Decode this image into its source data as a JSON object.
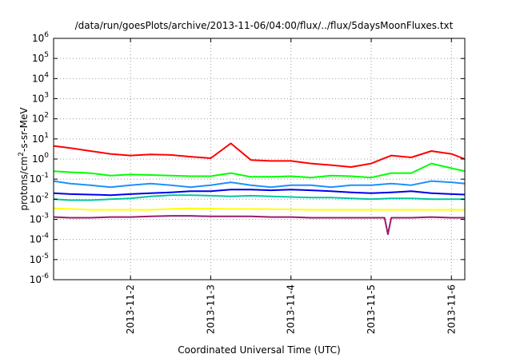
{
  "chart_data": {
    "type": "line",
    "title": "/data/run/goesPlots/archive/2013-11-06/04:00/flux/../flux/5daysMoonFluxes.txt",
    "xlabel": "Coordinated Universal Time (UTC)",
    "ylabel_parts": [
      "protons/cm",
      "2",
      "-s-sr-MeV"
    ],
    "yscale": "log",
    "ylim": [
      1e-06,
      1000000.0
    ],
    "xlim": [
      "2013-11-01T01:00",
      "2013-11-06T04:00"
    ],
    "grid": true,
    "ytick_labels": [
      {
        "base": "10",
        "exp": "6"
      },
      {
        "base": "10",
        "exp": "5"
      },
      {
        "base": "10",
        "exp": "4"
      },
      {
        "base": "10",
        "exp": "3"
      },
      {
        "base": "10",
        "exp": "2"
      },
      {
        "base": "10",
        "exp": "1"
      },
      {
        "base": "10",
        "exp": "0"
      },
      {
        "base": "10",
        "exp": "-1"
      },
      {
        "base": "10",
        "exp": "-2"
      },
      {
        "base": "10",
        "exp": "-3"
      },
      {
        "base": "10",
        "exp": "-4"
      },
      {
        "base": "10",
        "exp": "-5"
      },
      {
        "base": "10",
        "exp": "-6"
      }
    ],
    "xtick_labels": [
      "2013-11-2",
      "2013-11-3",
      "2013-11-4",
      "2013-11-5",
      "2013-11-6"
    ],
    "series": [
      {
        "color": "#ff0000",
        "x": [
          "2013-11-01T01:00",
          "2013-11-01T06:00",
          "2013-11-01T12:00",
          "2013-11-01T18:00",
          "2013-11-02T00:00",
          "2013-11-02T06:00",
          "2013-11-02T12:00",
          "2013-11-02T18:00",
          "2013-11-03T00:00",
          "2013-11-03T06:00",
          "2013-11-03T12:00",
          "2013-11-03T18:00",
          "2013-11-04T00:00",
          "2013-11-04T06:00",
          "2013-11-04T12:00",
          "2013-11-04T18:00",
          "2013-11-05T00:00",
          "2013-11-05T06:00",
          "2013-11-05T12:00",
          "2013-11-05T18:00",
          "2013-11-06T00:00",
          "2013-11-06T04:00"
        ],
        "values": [
          4.5,
          3.5,
          2.5,
          1.8,
          1.5,
          1.7,
          1.6,
          1.3,
          1.1,
          6.0,
          0.9,
          0.8,
          0.8,
          0.6,
          0.5,
          0.4,
          0.6,
          1.5,
          1.2,
          2.5,
          1.8,
          1.0
        ]
      },
      {
        "color": "#00ff00",
        "x": [
          "2013-11-01T01:00",
          "2013-11-01T06:00",
          "2013-11-01T12:00",
          "2013-11-01T18:00",
          "2013-11-02T00:00",
          "2013-11-02T06:00",
          "2013-11-02T12:00",
          "2013-11-02T18:00",
          "2013-11-03T00:00",
          "2013-11-03T06:00",
          "2013-11-03T12:00",
          "2013-11-03T18:00",
          "2013-11-04T00:00",
          "2013-11-04T06:00",
          "2013-11-04T12:00",
          "2013-11-04T18:00",
          "2013-11-05T00:00",
          "2013-11-05T06:00",
          "2013-11-05T12:00",
          "2013-11-05T18:00",
          "2013-11-06T00:00",
          "2013-11-06T04:00"
        ],
        "values": [
          0.25,
          0.22,
          0.2,
          0.15,
          0.17,
          0.16,
          0.15,
          0.14,
          0.14,
          0.2,
          0.13,
          0.13,
          0.14,
          0.12,
          0.15,
          0.14,
          0.12,
          0.2,
          0.2,
          0.6,
          0.35,
          0.25
        ]
      },
      {
        "color": "#1e90ff",
        "x": [
          "2013-11-01T01:00",
          "2013-11-01T06:00",
          "2013-11-01T12:00",
          "2013-11-01T18:00",
          "2013-11-02T00:00",
          "2013-11-02T06:00",
          "2013-11-02T12:00",
          "2013-11-02T18:00",
          "2013-11-03T00:00",
          "2013-11-03T06:00",
          "2013-11-03T12:00",
          "2013-11-03T18:00",
          "2013-11-04T00:00",
          "2013-11-04T06:00",
          "2013-11-04T12:00",
          "2013-11-04T18:00",
          "2013-11-05T00:00",
          "2013-11-05T06:00",
          "2013-11-05T12:00",
          "2013-11-05T18:00",
          "2013-11-06T00:00",
          "2013-11-06T04:00"
        ],
        "values": [
          0.08,
          0.06,
          0.05,
          0.04,
          0.05,
          0.06,
          0.05,
          0.04,
          0.05,
          0.07,
          0.05,
          0.04,
          0.05,
          0.05,
          0.04,
          0.05,
          0.05,
          0.06,
          0.05,
          0.08,
          0.07,
          0.06
        ]
      },
      {
        "color": "#0000ee",
        "x": [
          "2013-11-01T01:00",
          "2013-11-01T06:00",
          "2013-11-01T12:00",
          "2013-11-01T18:00",
          "2013-11-02T00:00",
          "2013-11-02T06:00",
          "2013-11-02T12:00",
          "2013-11-02T18:00",
          "2013-11-03T00:00",
          "2013-11-03T06:00",
          "2013-11-03T12:00",
          "2013-11-03T18:00",
          "2013-11-04T00:00",
          "2013-11-04T06:00",
          "2013-11-04T12:00",
          "2013-11-04T18:00",
          "2013-11-05T00:00",
          "2013-11-05T06:00",
          "2013-11-05T12:00",
          "2013-11-05T18:00",
          "2013-11-06T00:00",
          "2013-11-06T04:00"
        ],
        "values": [
          0.02,
          0.018,
          0.017,
          0.016,
          0.018,
          0.02,
          0.022,
          0.025,
          0.025,
          0.03,
          0.03,
          0.028,
          0.03,
          0.028,
          0.025,
          0.022,
          0.02,
          0.022,
          0.025,
          0.02,
          0.018,
          0.017
        ]
      },
      {
        "color": "#00c8a0",
        "x": [
          "2013-11-01T01:00",
          "2013-11-01T06:00",
          "2013-11-01T12:00",
          "2013-11-01T18:00",
          "2013-11-02T00:00",
          "2013-11-02T06:00",
          "2013-11-02T12:00",
          "2013-11-02T18:00",
          "2013-11-03T00:00",
          "2013-11-03T06:00",
          "2013-11-03T12:00",
          "2013-11-03T18:00",
          "2013-11-04T00:00",
          "2013-11-04T06:00",
          "2013-11-04T12:00",
          "2013-11-04T18:00",
          "2013-11-05T00:00",
          "2013-11-05T06:00",
          "2013-11-05T12:00",
          "2013-11-05T18:00",
          "2013-11-06T00:00",
          "2013-11-06T04:00"
        ],
        "values": [
          0.01,
          0.009,
          0.009,
          0.01,
          0.011,
          0.014,
          0.016,
          0.016,
          0.015,
          0.014,
          0.015,
          0.014,
          0.013,
          0.012,
          0.012,
          0.011,
          0.01,
          0.011,
          0.011,
          0.01,
          0.01,
          0.01
        ]
      },
      {
        "color": "#ffff00",
        "x": [
          "2013-11-01T01:00",
          "2013-11-01T06:00",
          "2013-11-01T12:00",
          "2013-11-01T18:00",
          "2013-11-02T00:00",
          "2013-11-02T06:00",
          "2013-11-02T12:00",
          "2013-11-02T18:00",
          "2013-11-03T00:00",
          "2013-11-03T06:00",
          "2013-11-03T12:00",
          "2013-11-03T18:00",
          "2013-11-04T00:00",
          "2013-11-04T06:00",
          "2013-11-04T12:00",
          "2013-11-04T18:00",
          "2013-11-05T00:00",
          "2013-11-05T06:00",
          "2013-11-05T12:00",
          "2013-11-05T18:00",
          "2013-11-06T00:00",
          "2013-11-06T04:00"
        ],
        "values": [
          0.0035,
          0.0033,
          0.003,
          0.003,
          0.003,
          0.003,
          0.0033,
          0.0035,
          0.0034,
          0.0033,
          0.0033,
          0.0032,
          0.0031,
          0.003,
          0.003,
          0.003,
          0.003,
          0.003,
          0.003,
          0.003,
          0.003,
          0.003
        ]
      },
      {
        "color": "#9b1b6b",
        "x": [
          "2013-11-01T01:00",
          "2013-11-01T06:00",
          "2013-11-01T12:00",
          "2013-11-01T18:00",
          "2013-11-02T00:00",
          "2013-11-02T06:00",
          "2013-11-02T12:00",
          "2013-11-02T18:00",
          "2013-11-03T00:00",
          "2013-11-03T06:00",
          "2013-11-03T12:00",
          "2013-11-03T18:00",
          "2013-11-04T00:00",
          "2013-11-04T06:00",
          "2013-11-04T12:00",
          "2013-11-04T18:00",
          "2013-11-05T00:00",
          "2013-11-05T04:00",
          "2013-11-05T05:00",
          "2013-11-05T06:00",
          "2013-11-05T12:00",
          "2013-11-05T18:00",
          "2013-11-06T00:00",
          "2013-11-06T04:00"
        ],
        "values": [
          0.0013,
          0.0012,
          0.0012,
          0.0013,
          0.0013,
          0.0014,
          0.0015,
          0.0015,
          0.0014,
          0.0014,
          0.0014,
          0.0013,
          0.0013,
          0.0012,
          0.0012,
          0.0012,
          0.0012,
          0.0012,
          0.00018,
          0.0012,
          0.0012,
          0.0013,
          0.0012,
          0.0012
        ]
      }
    ]
  }
}
